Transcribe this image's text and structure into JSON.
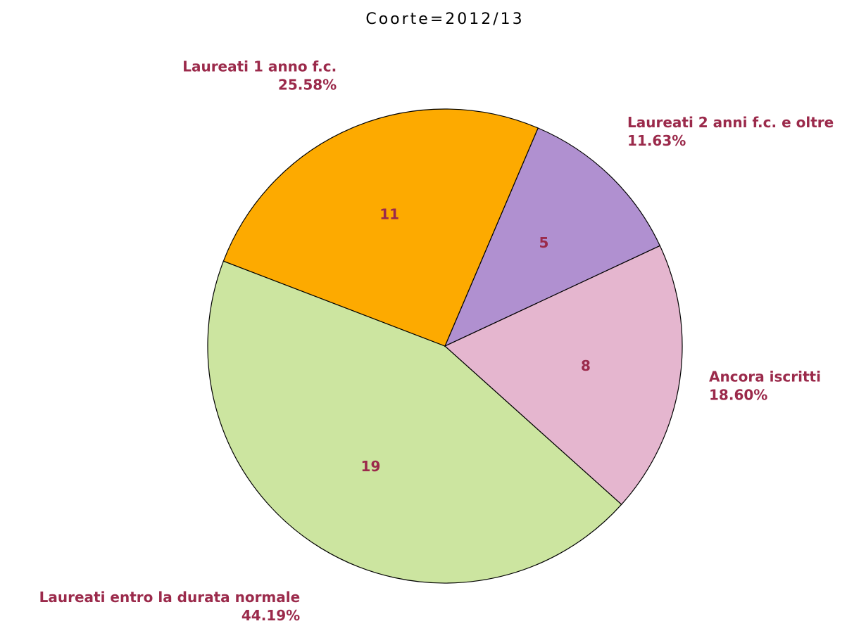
{
  "chart_data": {
    "type": "pie",
    "title": "Coorte=2012/13",
    "categories": [
      "Laureati entro la durata normale",
      "Ancora iscritti",
      "Laureati 2 anni f.c. e oltre",
      "Laureati 1 anno f.c."
    ],
    "values": [
      19,
      8,
      5,
      11
    ],
    "percentages": [
      44.19,
      18.6,
      11.63,
      25.58
    ],
    "percentage_labels": [
      "44.19%",
      "18.60%",
      "11.63%",
      "25.58%"
    ],
    "colors": [
      "#cce5a0",
      "#e5b6cf",
      "#b090d0",
      "#fdaa00"
    ],
    "label_color": "#9b2a4b"
  }
}
